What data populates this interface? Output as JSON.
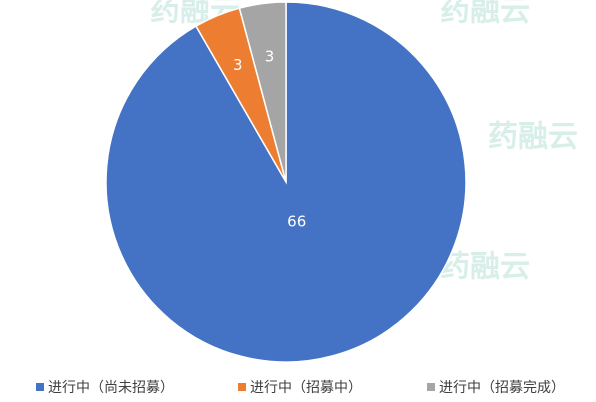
{
  "chart_data": {
    "type": "pie",
    "categories": [
      "进行中（尚未招募）",
      "进行中（招募中）",
      "进行中（招募完成）"
    ],
    "values": [
      66,
      3,
      3
    ],
    "colors": [
      "#4472c4",
      "#ed7d31",
      "#a5a5a5"
    ],
    "watermark": "药融云",
    "legend": "bottom"
  }
}
